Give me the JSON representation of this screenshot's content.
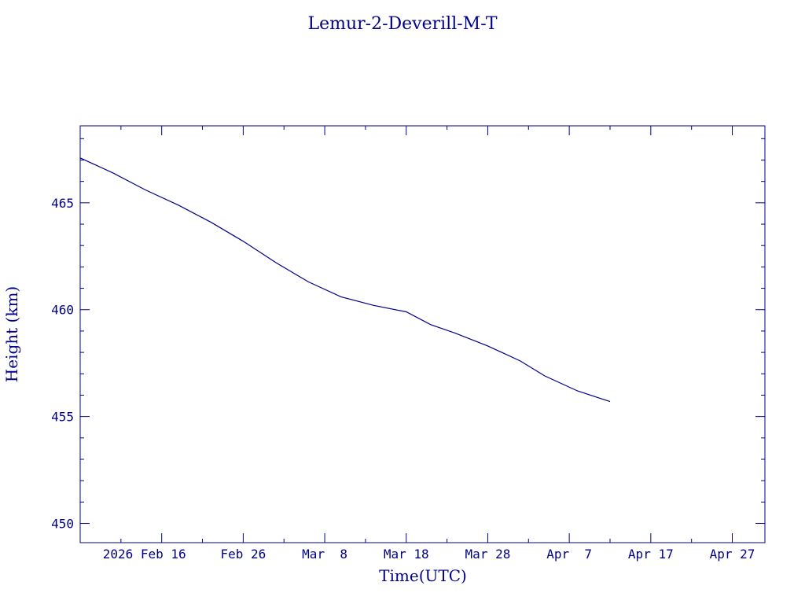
{
  "chart_data": {
    "type": "line",
    "title": "Lemur-2-Deverill-M-T",
    "xlabel": "Time(UTC)",
    "ylabel": "Height (km)",
    "color": "#00008b",
    "xlim": [
      "2026-02-06",
      "2026-05-01"
    ],
    "ylim": [
      449.1,
      468.6
    ],
    "x_tick_dates": [
      "2026-02-16",
      "2026-02-26",
      "2026-03-08",
      "2026-03-18",
      "2026-03-28",
      "2026-04-07",
      "2026-04-17",
      "2026-04-27"
    ],
    "x_tick_labels": [
      "2026 Feb 16",
      "Feb 26",
      "Mar  8",
      "Mar 18",
      "Mar 28",
      "Apr  7",
      "Apr 17",
      "Apr 27"
    ],
    "y_ticks": [
      450,
      455,
      460,
      465
    ],
    "y_tick_labels": [
      "450",
      "455",
      "460",
      "465"
    ],
    "series": [
      {
        "x": [
          "2026-02-06",
          "2026-02-10",
          "2026-02-14",
          "2026-02-18",
          "2026-02-22",
          "2026-02-26",
          "2026-03-02",
          "2026-03-06",
          "2026-03-10",
          "2026-03-14",
          "2026-03-18",
          "2026-03-21",
          "2026-03-24",
          "2026-03-28",
          "2026-04-01",
          "2026-04-04",
          "2026-04-08",
          "2026-04-12"
        ],
        "y": [
          467.1,
          466.4,
          465.6,
          464.9,
          464.1,
          463.2,
          462.2,
          461.3,
          460.6,
          460.2,
          459.9,
          459.3,
          458.9,
          458.3,
          457.6,
          456.9,
          456.2,
          455.7
        ]
      }
    ]
  }
}
